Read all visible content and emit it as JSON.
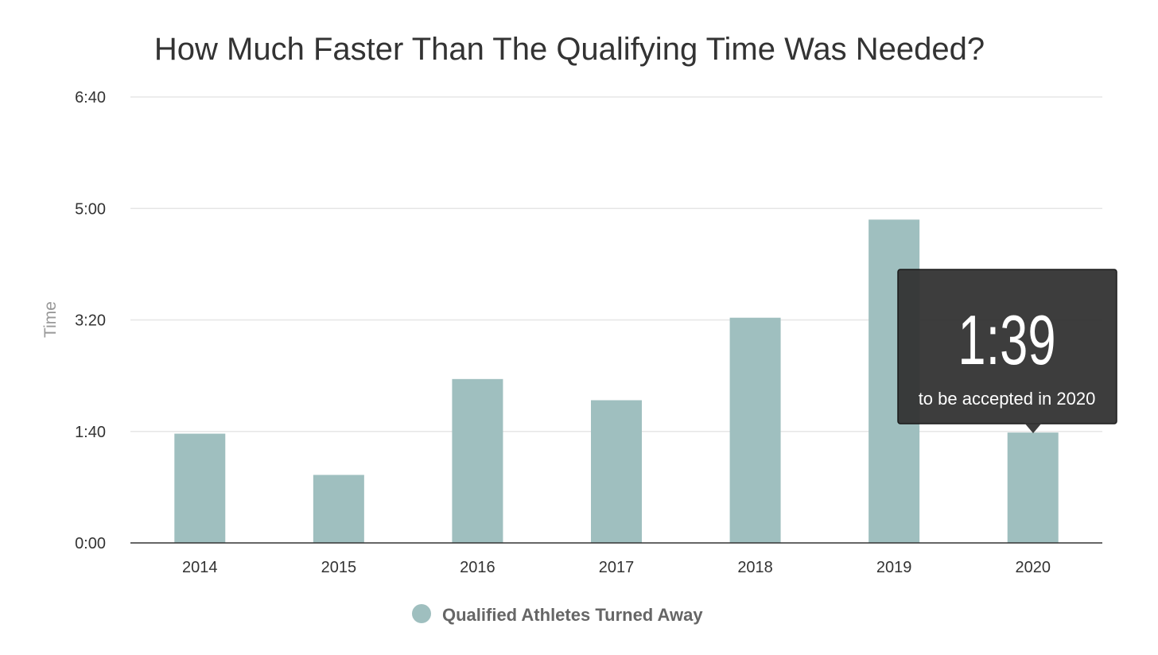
{
  "chart_data": {
    "type": "bar",
    "title": "How Much Faster Than The Qualifying Time Was Needed?",
    "xlabel": "",
    "ylabel": "Time",
    "categories": [
      "2014",
      "2015",
      "2016",
      "2017",
      "2018",
      "2019",
      "2020"
    ],
    "series": [
      {
        "name": "Qualified Athletes Turned Away",
        "values": [
          98,
          61,
          147,
          128,
          202,
          290,
          99
        ]
      }
    ],
    "value_unit": "seconds",
    "ylim": [
      0,
      400
    ],
    "yticks": [
      0,
      100,
      200,
      300,
      400
    ],
    "ytick_labels": [
      "0:00",
      "1:40",
      "3:20",
      "5:00",
      "6:40"
    ],
    "grid": true,
    "legend_position": "bottom-center",
    "tooltip": {
      "category": "2020",
      "value_label": "1:39",
      "caption": "to be accepted in 2020"
    }
  },
  "colors": {
    "bar": "#9fbfbf",
    "grid": "#e6e6e6",
    "axis": "#333333",
    "tooltip_bg": "#333333",
    "tooltip_border": "#111111"
  }
}
